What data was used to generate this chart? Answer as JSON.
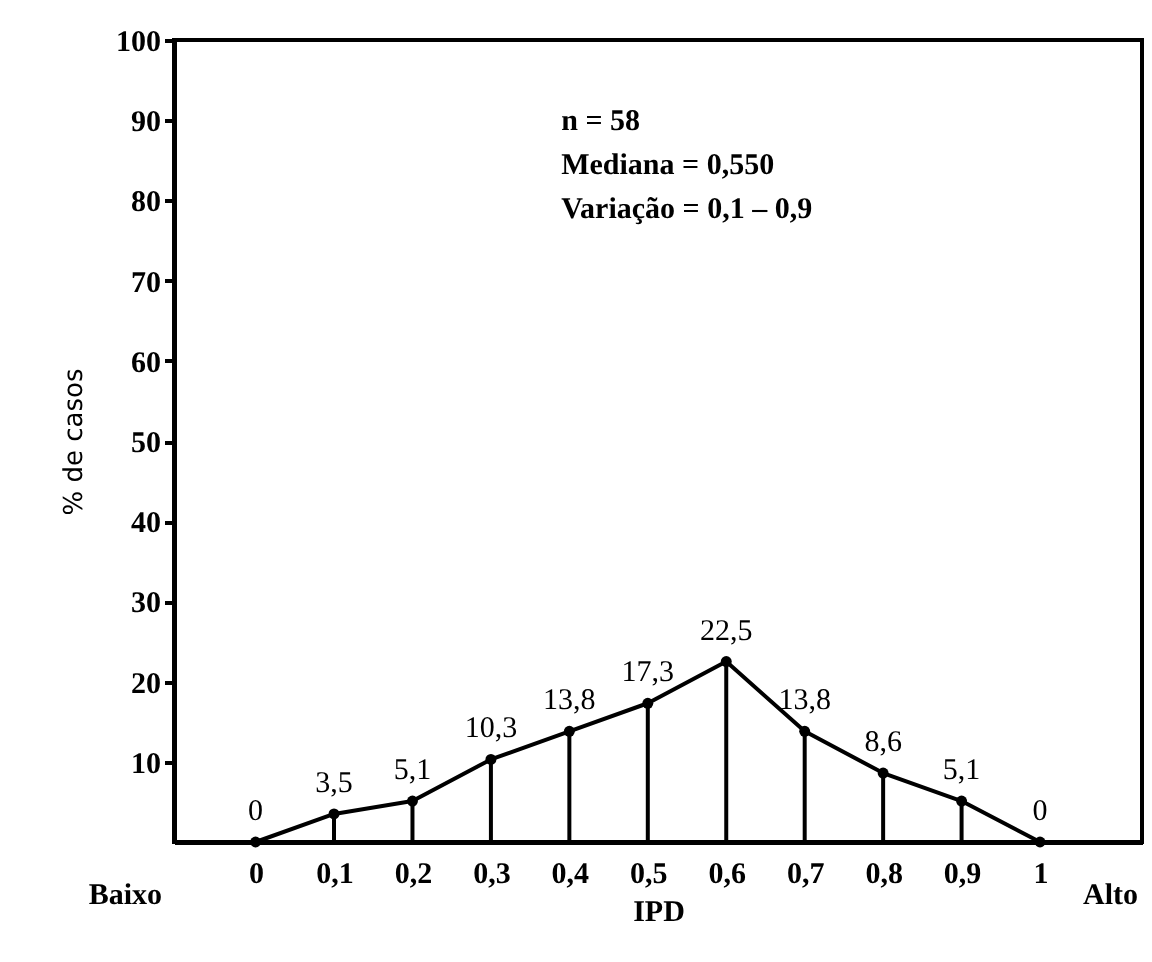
{
  "chart_data": {
    "type": "line",
    "xlabel": "IPD",
    "ylabel": "% de casos",
    "x": [
      0,
      0.1,
      0.2,
      0.3,
      0.4,
      0.5,
      0.6,
      0.7,
      0.8,
      0.9,
      1
    ],
    "series": [
      {
        "color": "#000000",
        "values": [
          0,
          3.5,
          5.1,
          10.3,
          13.8,
          17.3,
          22.5,
          13.8,
          8.6,
          5.1,
          0
        ],
        "value_labels": [
          "0",
          "3,5",
          "5,1",
          "10,3",
          "13,8",
          "17,3",
          "22,5",
          "13,8",
          "8,6",
          "5,1",
          "0"
        ]
      }
    ],
    "marker": "circle",
    "line_style": "solid",
    "grid": false,
    "xlim": [
      -0.104,
      1.13
    ],
    "ylim": [
      0,
      100
    ],
    "xticks": [
      {
        "value": 0,
        "label": "0"
      },
      {
        "value": 0.1,
        "label": "0,1"
      },
      {
        "value": 0.2,
        "label": "0,2"
      },
      {
        "value": 0.3,
        "label": "0,3"
      },
      {
        "value": 0.4,
        "label": "0,4"
      },
      {
        "value": 0.5,
        "label": "0,5"
      },
      {
        "value": 0.6,
        "label": "0,6"
      },
      {
        "value": 0.7,
        "label": "0,7"
      },
      {
        "value": 0.8,
        "label": "0,8"
      },
      {
        "value": 0.9,
        "label": "0,9"
      },
      {
        "value": 1,
        "label": "1"
      }
    ],
    "yticks": [
      10,
      20,
      30,
      40,
      50,
      60,
      70,
      80,
      90,
      100
    ],
    "annotations": [
      "n = 58",
      "Mediana = 0,550",
      "Variação = 0,1 – 0,9",
      "Baixo",
      "Alto"
    ]
  }
}
